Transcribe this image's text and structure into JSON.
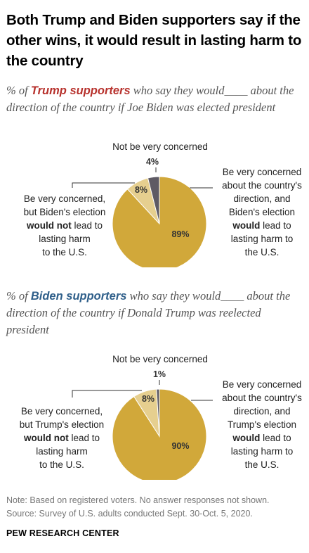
{
  "title": "Both Trump and Biden supporters say if the other wins, it would result in lasting harm to the country",
  "colors": {
    "concerned_harm": "#d1a83a",
    "concerned_no_harm": "#e6cf8f",
    "not_concerned": "#5e5a64",
    "trump": "#b7312c",
    "biden": "#2f5f8a"
  },
  "charts": [
    {
      "subtitle_pre": "% of ",
      "subtitle_highlight": "Trump supporters",
      "subtitle_post": " who say they would____ about the direction of the country if Joe Biden was elected president",
      "label_top": "Not be very concerned",
      "label_left_1": "Be very concerned,",
      "label_left_2": "but Biden's election",
      "label_left_3_bold": "would not",
      "label_left_3_rest": " lead to",
      "label_left_4": "lasting harm",
      "label_left_5": "to the U.S.",
      "label_right_1": "Be very concerned",
      "label_right_2": "about the country's",
      "label_right_3": "direction, and",
      "label_right_4": "Biden's election",
      "label_right_5": "would",
      "label_right_6": "lead to",
      "label_right_7": "lasting harm to",
      "label_right_8": "the U.S.",
      "pct_harm": "89%",
      "pct_no_harm": "8%",
      "pct_not": "4%"
    },
    {
      "subtitle_pre": "% of ",
      "subtitle_highlight": "Biden supporters",
      "subtitle_post": " who say they would____ about the direction of the country if Donald Trump was reelected president",
      "label_top": "Not be very concerned",
      "label_left_1": "Be very concerned,",
      "label_left_2": "but Trump's election",
      "label_left_3_bold": "would not",
      "label_left_3_rest": " lead to",
      "label_left_4": "lasting harm",
      "label_left_5": "to the U.S.",
      "label_right_1": "Be very concerned",
      "label_right_2": "about the country's",
      "label_right_3": "direction, and",
      "label_right_4": "Trump's election",
      "label_right_5": "would",
      "label_right_6": "lead to",
      "label_right_7": "lasting harm to",
      "label_right_8": "the U.S.",
      "pct_harm": "90%",
      "pct_no_harm": "8%",
      "pct_not": "1%"
    }
  ],
  "chart_data": [
    {
      "type": "pie",
      "categories": [
        "Be very concerned, and election would lead to lasting harm",
        "Be very concerned, but election would not lead to lasting harm",
        "Not be very concerned"
      ],
      "values": [
        89,
        8,
        4
      ]
    },
    {
      "type": "pie",
      "categories": [
        "Be very concerned, and election would lead to lasting harm",
        "Be very concerned, but election would not lead to lasting harm",
        "Not be very concerned"
      ],
      "values": [
        90,
        8,
        1
      ]
    }
  ],
  "note": "Note: Based on registered voters. No answer responses not shown.",
  "source": "Source: Survey of U.S. adults conducted Sept. 30-Oct. 5, 2020.",
  "org": "PEW RESEARCH CENTER"
}
